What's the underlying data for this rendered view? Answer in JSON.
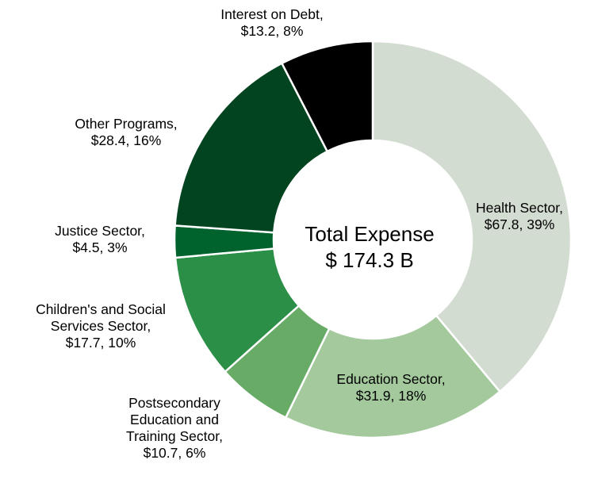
{
  "chart_data": {
    "type": "pie",
    "variant": "donut",
    "unit": "$ billions",
    "center_label": [
      "Total Expense",
      "$ 174.3 B"
    ],
    "total": 174.3,
    "slices": [
      {
        "name": "Health Sector",
        "value": 67.8,
        "percent": 39,
        "color": "#d3dcd0",
        "label_lines": [
          "Health Sector,",
          "$67.8, 39%"
        ],
        "label_color": "#000000"
      },
      {
        "name": "Education Sector",
        "value": 31.9,
        "percent": 18,
        "color": "#a3c99d",
        "label_lines": [
          "Education Sector,",
          "$31.9, 18%"
        ],
        "label_color": "#000000"
      },
      {
        "name": "Postsecondary Education and Training Sector",
        "value": 10.7,
        "percent": 6,
        "color": "#67ab67",
        "label_lines": [
          "Postsecondary",
          "Education and",
          "Training Sector,",
          "$10.7, 6%"
        ],
        "label_color": "#000000"
      },
      {
        "name": "Children's and Social Services Sector",
        "value": 17.7,
        "percent": 10,
        "color": "#2c8f47",
        "label_lines": [
          "Children's and Social",
          "Services Sector,",
          "$17.7, 10%"
        ],
        "label_color": "#000000"
      },
      {
        "name": "Justice Sector",
        "value": 4.5,
        "percent": 3,
        "color": "#00632d",
        "label_lines": [
          "Justice Sector,",
          "$4.5, 3%"
        ],
        "label_color": "#000000"
      },
      {
        "name": "Other Programs",
        "value": 28.4,
        "percent": 16,
        "color": "#034420",
        "label_lines": [
          "Other Programs,",
          "$28.4, 16%"
        ],
        "label_color": "#000000"
      },
      {
        "name": "Interest on Debt",
        "value": 13.2,
        "percent": 8,
        "color": "#000000",
        "label_lines": [
          "Interest on Debt,",
          "$13.2, 8%"
        ],
        "label_color": "#000000"
      }
    ]
  }
}
